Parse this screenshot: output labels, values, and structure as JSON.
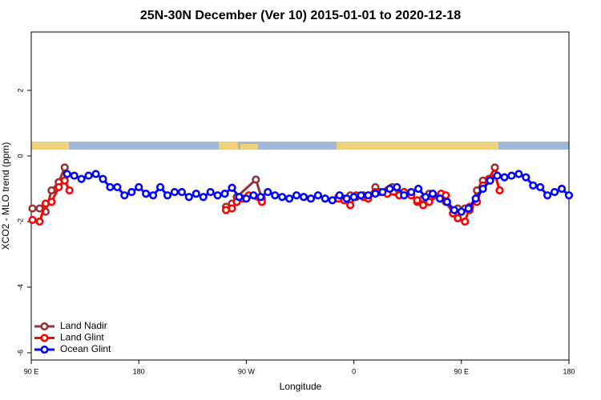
{
  "chart_data": {
    "type": "line",
    "title": "25N-30N December (Ver 10)   2015-01-01 to 2020-12-18",
    "xlabel": "Longitude",
    "ylabel": "XCO2 - MLO trend (ppm)",
    "xlim": [
      90,
      540
    ],
    "xticks": [
      {
        "value": 90,
        "label": "90 E"
      },
      {
        "value": 180,
        "label": "180"
      },
      {
        "value": 270,
        "label": "90 W"
      },
      {
        "value": 360,
        "label": "0"
      },
      {
        "value": 450,
        "label": "90 E"
      },
      {
        "value": 540,
        "label": "180"
      }
    ],
    "ylim": [
      -6.22,
      3.78
    ],
    "yticks": [
      -6,
      -4,
      -2,
      0,
      2
    ],
    "legend": "bottom-left",
    "series": [
      {
        "name": "Land Nadir",
        "color": "#993333",
        "x": [
          91,
          97,
          102,
          107,
          113,
          118,
          253,
          258,
          262,
          278,
          283,
          347,
          352,
          357,
          362,
          368,
          372,
          378,
          382,
          388,
          392,
          398,
          402,
          408,
          413,
          418,
          423,
          427,
          433,
          437,
          443,
          447,
          453,
          457,
          463,
          468,
          473,
          478
        ],
        "values": [
          -1.6,
          -1.6,
          -1.7,
          -1.05,
          -0.8,
          -0.35,
          -1.55,
          -1.45,
          -1.25,
          -0.72,
          -1.3,
          -1.25,
          -1.3,
          -1.2,
          -1.25,
          -1.2,
          -1.25,
          -0.95,
          -1.1,
          -1.05,
          -0.95,
          -1.15,
          -1.1,
          -1.15,
          -1.4,
          -1.3,
          -1.15,
          -1.2,
          -1.3,
          -1.4,
          -1.75,
          -1.6,
          -1.6,
          -1.65,
          -1.05,
          -0.75,
          -0.7,
          -0.35
        ]
      },
      {
        "name": "Land Glint",
        "color": "#ff0000",
        "x": [
          91,
          97,
          102,
          107,
          113,
          118,
          122,
          253,
          258,
          262,
          267,
          272,
          283,
          347,
          352,
          357,
          362,
          368,
          372,
          378,
          382,
          388,
          398,
          402,
          408,
          413,
          418,
          423,
          433,
          437,
          443,
          447,
          453,
          457,
          463,
          468,
          473,
          478,
          482
        ],
        "values": [
          -1.95,
          -2.0,
          -1.45,
          -1.4,
          -0.95,
          -0.75,
          -1.05,
          -1.65,
          -1.6,
          -1.4,
          -1.3,
          -1.2,
          -1.4,
          -1.3,
          -1.35,
          -1.5,
          -1.2,
          -1.25,
          -1.3,
          -1.1,
          -1.1,
          -1.15,
          -1.2,
          -1.1,
          -1.2,
          -1.35,
          -1.5,
          -1.4,
          -1.15,
          -1.2,
          -1.75,
          -1.9,
          -2.0,
          -1.55,
          -1.4,
          -0.9,
          -0.7,
          -0.55,
          -1.05
        ]
      },
      {
        "name": "Ocean Glint",
        "color": "#0000ff",
        "x": [
          120,
          126,
          132,
          138,
          144,
          150,
          156,
          162,
          168,
          174,
          180,
          186,
          192,
          198,
          204,
          210,
          216,
          222,
          228,
          234,
          240,
          246,
          252,
          258,
          264,
          270,
          276,
          282,
          288,
          294,
          300,
          306,
          312,
          318,
          324,
          330,
          336,
          342,
          348,
          354,
          360,
          366,
          372,
          378,
          384,
          390,
          396,
          402,
          408,
          414,
          420,
          426,
          432,
          438,
          444,
          450,
          456,
          462,
          468,
          474,
          480,
          486,
          492,
          498,
          504,
          510,
          516,
          522,
          528,
          534,
          540
        ],
        "values": [
          -0.55,
          -0.6,
          -0.7,
          -0.6,
          -0.55,
          -0.7,
          -0.95,
          -0.95,
          -1.2,
          -1.1,
          -0.95,
          -1.15,
          -1.2,
          -0.95,
          -1.2,
          -1.1,
          -1.1,
          -1.25,
          -1.15,
          -1.25,
          -1.1,
          -1.2,
          -1.15,
          -0.97,
          -1.25,
          -1.3,
          -1.2,
          -1.25,
          -1.1,
          -1.2,
          -1.25,
          -1.3,
          -1.2,
          -1.25,
          -1.3,
          -1.2,
          -1.3,
          -1.35,
          -1.2,
          -1.3,
          -1.25,
          -1.2,
          -1.2,
          -1.15,
          -1.1,
          -1.0,
          -0.95,
          -1.2,
          -1.1,
          -1.0,
          -1.25,
          -1.15,
          -1.3,
          -1.4,
          -1.65,
          -1.7,
          -1.6,
          -1.3,
          -1.0,
          -0.75,
          -0.6,
          -0.65,
          -0.6,
          -0.55,
          -0.65,
          -0.9,
          -0.95,
          -1.2,
          -1.1,
          -1.0,
          -1.2
        ]
      }
    ]
  }
}
